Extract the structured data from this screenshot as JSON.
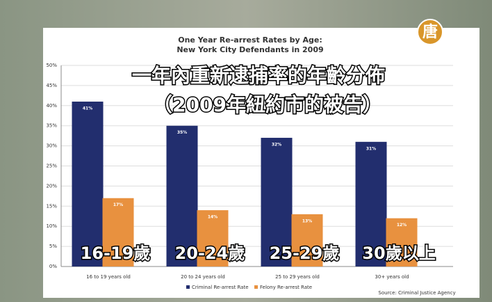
{
  "chart_data": {
    "type": "bar",
    "title": "One Year Re-arrest Rates by Age:",
    "subtitle": "New York City Defendants in 2009",
    "annotations": [
      "一年內重新逮捕率的年齡分佈",
      "（2009年紐約市的被告）"
    ],
    "category_annotations": [
      "16-19歲",
      "20-24歲",
      "25-29歲",
      "30歲以上"
    ],
    "categories": [
      "16 to 19 years old",
      "20 to 24 years old",
      "25 to 29 years old",
      "30+ years old"
    ],
    "series": [
      {
        "name": "Criminal Re-arrest Rate",
        "color": "#222e6e",
        "values": [
          41,
          35,
          32,
          31
        ],
        "value_labels": [
          "41%",
          "35%",
          "32%",
          "31%"
        ]
      },
      {
        "name": "Felony Re-arrest Rate",
        "color": "#e8913f",
        "values": [
          17,
          14,
          13,
          12
        ],
        "value_labels": [
          "17%",
          "14%",
          "13%",
          "12%"
        ]
      }
    ],
    "ylim": [
      0,
      50
    ],
    "yticks": [
      {
        "value": 0,
        "label": "0%"
      },
      {
        "value": 5,
        "label": "5%"
      },
      {
        "value": 10,
        "label": "10%"
      },
      {
        "value": 15,
        "label": "15%"
      },
      {
        "value": 20,
        "label": "20%"
      },
      {
        "value": 25,
        "label": "25%"
      },
      {
        "value": 30,
        "label": "30%"
      },
      {
        "value": 35,
        "label": "35%"
      },
      {
        "value": 40,
        "label": "40%"
      },
      {
        "value": 45,
        "label": "45%"
      },
      {
        "value": 50,
        "label": "50%"
      }
    ],
    "grid": true,
    "source": "Source: Criminal Justice Agency"
  },
  "logo": "唐"
}
